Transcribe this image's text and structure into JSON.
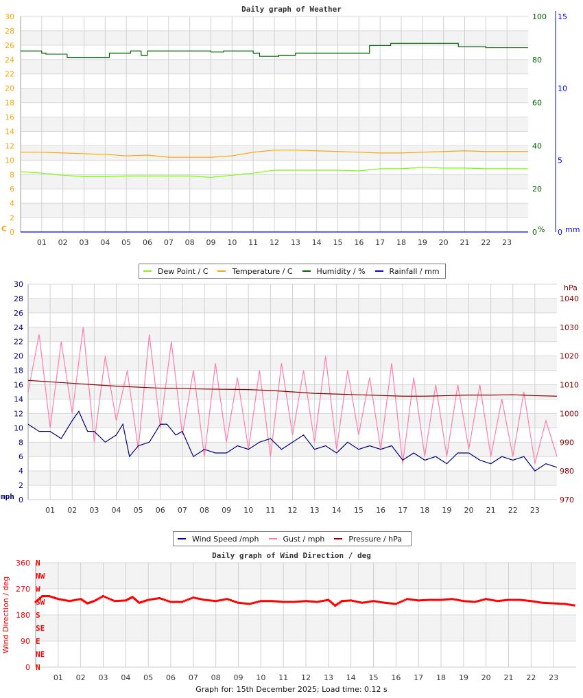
{
  "chart_data": [
    {
      "type": "line",
      "title": "Daily graph of Weather",
      "x_ticks": [
        "01",
        "02",
        "03",
        "04",
        "05",
        "06",
        "07",
        "08",
        "09",
        "10",
        "11",
        "12",
        "13",
        "14",
        "15",
        "16",
        "17",
        "18",
        "19",
        "20",
        "21",
        "22",
        "23"
      ],
      "xlim": [
        0,
        24
      ],
      "grid": true,
      "legend": "bottom",
      "axes": {
        "left": {
          "unit": "C",
          "ylim": [
            0,
            30
          ],
          "ticks": [
            0,
            2,
            4,
            6,
            8,
            10,
            12,
            14,
            16,
            18,
            20,
            22,
            24,
            26,
            28,
            30
          ],
          "color": "#ffa500"
        },
        "right1": {
          "unit": "%",
          "ylim": [
            0,
            100
          ],
          "ticks": [
            0,
            20,
            40,
            60,
            80,
            100
          ],
          "color": "#006400"
        },
        "right2": {
          "unit": "mm",
          "ylim": [
            0,
            15
          ],
          "ticks": [
            0,
            5,
            10,
            15
          ],
          "color": "#0000ff"
        }
      },
      "series": [
        {
          "name": "Dew Point / C",
          "axis": "left",
          "color": "#7cfc00",
          "x": [
            0,
            1,
            2,
            3,
            4,
            5,
            6,
            7,
            8,
            9,
            10,
            11,
            12,
            13,
            14,
            15,
            16,
            17,
            18,
            19,
            20,
            21,
            22,
            23,
            24
          ],
          "y": [
            8.4,
            8.2,
            7.9,
            7.7,
            7.7,
            7.8,
            7.8,
            7.8,
            7.8,
            7.6,
            7.9,
            8.2,
            8.6,
            8.6,
            8.6,
            8.6,
            8.5,
            8.8,
            8.8,
            9.0,
            8.9,
            8.9,
            8.8,
            8.8,
            8.8
          ]
        },
        {
          "name": "Temperature / C",
          "axis": "left",
          "color": "#ffa500",
          "x": [
            0,
            1,
            2,
            3,
            4,
            5,
            6,
            7,
            8,
            9,
            10,
            11,
            12,
            13,
            14,
            15,
            16,
            17,
            18,
            19,
            20,
            21,
            22,
            23,
            24
          ],
          "y": [
            11.1,
            11.1,
            11.0,
            10.9,
            10.8,
            10.6,
            10.7,
            10.4,
            10.4,
            10.4,
            10.6,
            11.1,
            11.4,
            11.4,
            11.3,
            11.2,
            11.1,
            11.0,
            11.0,
            11.1,
            11.2,
            11.3,
            11.2,
            11.2,
            11.2
          ]
        },
        {
          "name": "Humidity / %",
          "axis": "right1",
          "color": "#006400",
          "x": [
            0,
            1,
            1.2,
            2.2,
            3.5,
            4.2,
            5.2,
            5.7,
            6,
            8,
            9,
            9.6,
            11,
            11.3,
            12.2,
            13,
            15,
            16,
            16.5,
            17.5,
            19.5,
            20.7,
            22,
            24
          ],
          "y": [
            84,
            83,
            82.5,
            81,
            81,
            83,
            84,
            82,
            84,
            84,
            83.5,
            84,
            83,
            81.5,
            82,
            83,
            83,
            83,
            86.5,
            87.5,
            87.5,
            86,
            85.5,
            85.5
          ]
        },
        {
          "name": "Rainfall / mm",
          "axis": "right2",
          "color": "#0000ff",
          "x": [
            0,
            24
          ],
          "y": [
            0,
            0
          ]
        }
      ]
    },
    {
      "type": "line",
      "title": "",
      "x_ticks": [
        "01",
        "02",
        "03",
        "04",
        "05",
        "06",
        "07",
        "08",
        "09",
        "10",
        "11",
        "12",
        "13",
        "14",
        "15",
        "16",
        "17",
        "18",
        "19",
        "20",
        "21",
        "22",
        "23"
      ],
      "xlim": [
        0,
        24
      ],
      "grid": true,
      "legend": "bottom",
      "axes": {
        "left": {
          "unit": "mph",
          "ylim": [
            0,
            30
          ],
          "ticks": [
            0,
            2,
            4,
            6,
            8,
            10,
            12,
            14,
            16,
            18,
            20,
            22,
            24,
            26,
            28,
            30
          ],
          "color": "#000080"
        },
        "right": {
          "unit": "hPa",
          "ylim": [
            970,
            1045
          ],
          "ticks": [
            970,
            980,
            990,
            1000,
            1010,
            1020,
            1030,
            1040
          ],
          "color": "#8b0000"
        }
      },
      "series": [
        {
          "name": "Wind Speed /mph",
          "axis": "left",
          "color": "#000080",
          "x": [
            0,
            0.5,
            1,
            1.5,
            2,
            2.3,
            2.7,
            3,
            3.5,
            4,
            4.3,
            4.6,
            5,
            5.5,
            6,
            6.3,
            6.7,
            7,
            7.5,
            8,
            8.5,
            9,
            9.5,
            10,
            10.5,
            11,
            11.5,
            12,
            12.5,
            13,
            13.5,
            14,
            14.5,
            15,
            15.5,
            16,
            16.5,
            17,
            17.5,
            18,
            18.5,
            19,
            19.5,
            20,
            20.5,
            21,
            21.5,
            22,
            22.5,
            23,
            23.5,
            24
          ],
          "y": [
            10.5,
            9.5,
            9.5,
            8.5,
            11,
            12.3,
            9.5,
            9.5,
            8,
            9,
            10.5,
            6,
            7.5,
            8,
            10.5,
            10.5,
            9,
            9.5,
            6,
            7,
            6.5,
            6.5,
            7.5,
            7,
            8,
            8.5,
            7,
            8,
            9,
            7,
            7.5,
            6.5,
            8,
            7,
            7.5,
            7,
            7.5,
            5.5,
            6.5,
            5.5,
            6,
            5,
            6.5,
            6.5,
            5.5,
            5,
            6,
            5.5,
            6,
            4,
            5,
            4.5
          ]
        },
        {
          "name": "Gust / mph",
          "axis": "left",
          "color": "#ff7fa8",
          "x": [
            0,
            0.5,
            1,
            1.5,
            2,
            2.5,
            3,
            3.5,
            4,
            4.5,
            5,
            5.5,
            6,
            6.5,
            7,
            7.5,
            8,
            8.5,
            9,
            9.5,
            10,
            10.5,
            11,
            11.5,
            12,
            12.5,
            13,
            13.5,
            14,
            14.5,
            15,
            15.5,
            16,
            16.5,
            17,
            17.5,
            18,
            18.5,
            19,
            19.5,
            20,
            20.5,
            21,
            21.5,
            22,
            22.5,
            23,
            23.5,
            24
          ],
          "y": [
            15,
            23,
            10,
            22,
            12,
            24,
            8,
            20,
            11,
            18,
            7,
            23,
            10,
            22,
            9,
            18,
            6,
            19,
            8,
            17,
            7,
            18,
            6,
            19,
            9,
            18,
            8,
            20,
            7,
            18,
            9,
            17,
            7,
            19,
            5,
            17,
            6,
            16,
            6,
            16,
            7,
            16,
            6,
            14,
            6,
            15,
            5,
            11,
            6
          ]
        },
        {
          "name": "Pressure / hPa",
          "axis": "right",
          "color": "#8b0000",
          "x": [
            0,
            2,
            4,
            6,
            8,
            10,
            11,
            12,
            13,
            15,
            17,
            18,
            19,
            20,
            21,
            22,
            23,
            24
          ],
          "y": [
            1011.5,
            1010.5,
            1009.5,
            1008.8,
            1008.5,
            1008.3,
            1008,
            1007.5,
            1007,
            1006.5,
            1006,
            1006,
            1006.2,
            1006.4,
            1006.4,
            1006.5,
            1006.2,
            1006
          ]
        }
      ]
    },
    {
      "type": "scatter",
      "title": "Daily graph of Wind Direction / deg",
      "ylabel": "Wind Direction / deg",
      "x_ticks": [
        "01",
        "02",
        "03",
        "04",
        "05",
        "06",
        "07",
        "08",
        "09",
        "10",
        "11",
        "12",
        "13",
        "14",
        "15",
        "16",
        "17",
        "18",
        "19",
        "20",
        "21",
        "22",
        "23"
      ],
      "xlim": [
        0,
        24
      ],
      "ylim": [
        0,
        360
      ],
      "y_ticks": [
        0,
        90,
        180,
        270,
        360
      ],
      "compass_labels": [
        "N",
        "NE",
        "E",
        "SE",
        "S",
        "SW",
        "W",
        "NW",
        "N"
      ],
      "grid": true,
      "color": "#ff0000",
      "series": [
        {
          "name": "",
          "x": [
            0,
            0.3,
            0.6,
            1,
            1.5,
            2,
            2.3,
            2.6,
            3,
            3.5,
            4,
            4.3,
            4.6,
            5,
            5.5,
            6,
            6.5,
            7,
            7.5,
            8,
            8.5,
            9,
            9.5,
            10,
            10.5,
            11,
            11.5,
            12,
            12.5,
            13,
            13.3,
            13.6,
            14,
            14.5,
            15,
            15.5,
            16,
            16.5,
            17,
            17.5,
            18,
            18.5,
            19,
            19.5,
            20,
            20.5,
            21,
            21.5,
            22,
            22.5,
            23,
            23.5,
            24
          ],
          "y": [
            225,
            245,
            245,
            235,
            228,
            235,
            220,
            228,
            245,
            228,
            230,
            242,
            222,
            232,
            238,
            225,
            225,
            240,
            232,
            228,
            235,
            222,
            218,
            228,
            228,
            225,
            225,
            228,
            225,
            232,
            212,
            228,
            230,
            222,
            228,
            222,
            218,
            235,
            230,
            232,
            232,
            235,
            228,
            225,
            235,
            228,
            232,
            232,
            228,
            222,
            220,
            218,
            212
          ]
        }
      ]
    }
  ],
  "footer": "Graph for: 15th December 2025; Load time: 0.12 s"
}
